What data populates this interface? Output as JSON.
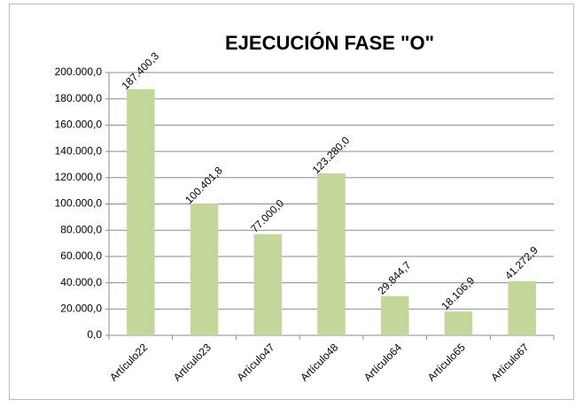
{
  "chart_data": {
    "type": "bar",
    "title": "EJECUCIÓN FASE \"O\"",
    "categories": [
      "Artículo22",
      "Artículo23",
      "Artículo47",
      "Artículo48",
      "Artículo64",
      "Artículo65",
      "Artículo67"
    ],
    "values": [
      187400.3,
      100401.8,
      77000.0,
      123280.0,
      29844.7,
      18106.9,
      41272.9
    ],
    "value_labels": [
      "187.400,3",
      "100.401,8",
      "77.000,0",
      "123.280,0",
      "29.844,7",
      "18.106,9",
      "41.272,9"
    ],
    "color": "#c4d79b",
    "ylim": [
      0,
      200000
    ],
    "yticks": [
      {
        "value": 0,
        "label": "0,0"
      },
      {
        "value": 20000,
        "label": "20.000,0"
      },
      {
        "value": 40000,
        "label": "40.000,0"
      },
      {
        "value": 60000,
        "label": "60.000,0"
      },
      {
        "value": 80000,
        "label": "80.000,0"
      },
      {
        "value": 100000,
        "label": "100.000,0"
      },
      {
        "value": 120000,
        "label": "120.000,0"
      },
      {
        "value": 140000,
        "label": "140.000,0"
      },
      {
        "value": 160000,
        "label": "160.000,0"
      },
      {
        "value": 180000,
        "label": "180.000,0"
      },
      {
        "value": 200000,
        "label": "200.000,0"
      }
    ],
    "grid": true
  }
}
